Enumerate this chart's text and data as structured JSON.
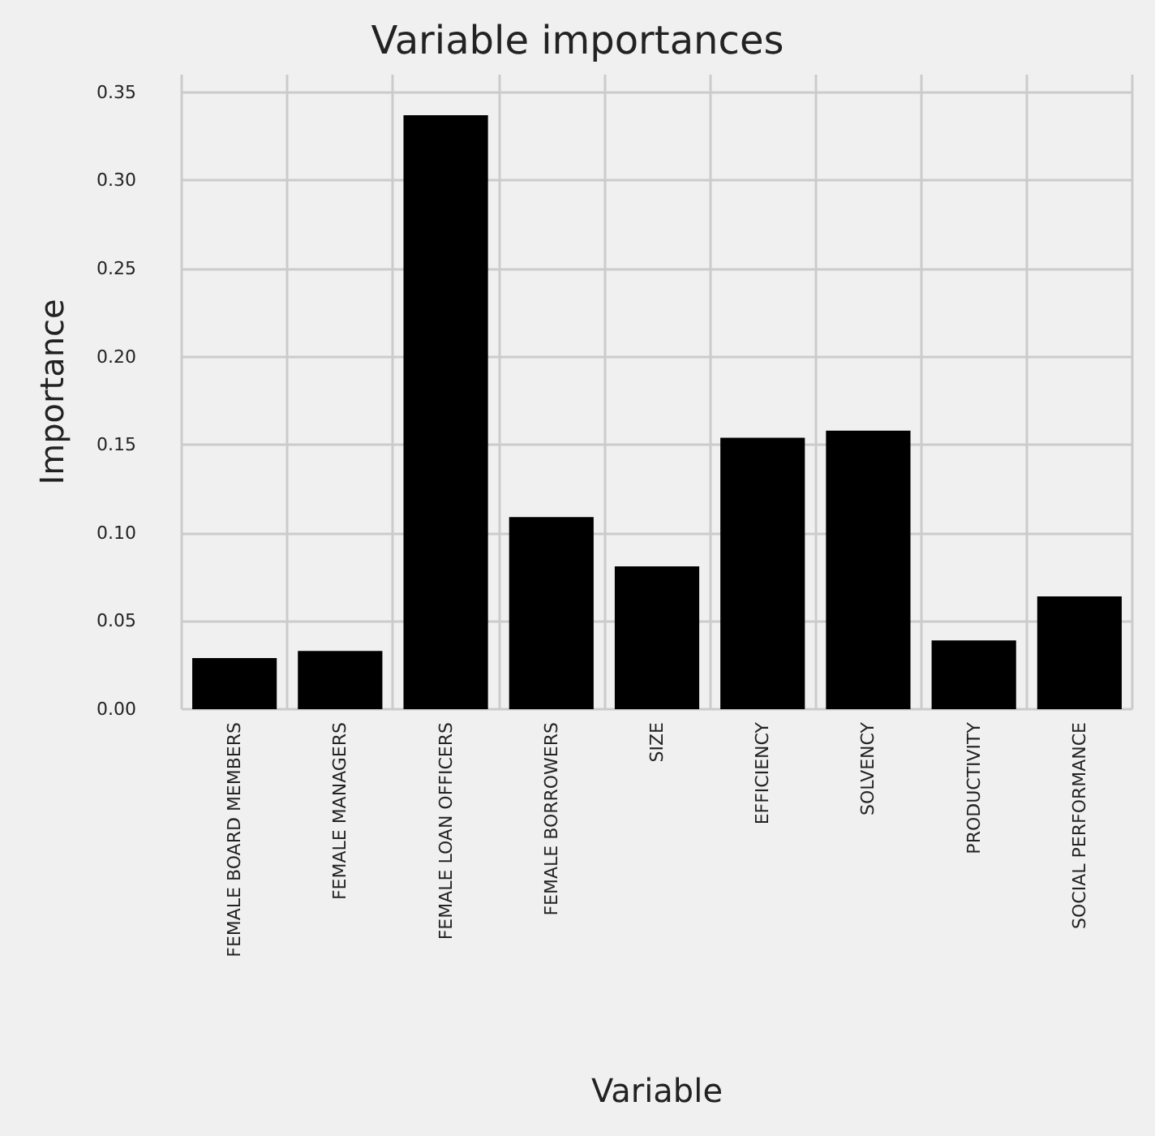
{
  "chart_data": {
    "type": "bar",
    "title": "Variable importances",
    "xlabel": "Variable",
    "ylabel": "Importance",
    "categories": [
      "FEMALE BOARD MEMBERS",
      "FEMALE MANAGERS",
      "FEMALE LOAN OFFICERS",
      "FEMALE BORROWERS",
      "SIZE",
      "EFFICIENCY",
      "SOLVENCY",
      "PRODUCTIVITY",
      "SOCIAL PERFORMANCE"
    ],
    "values": [
      0.029,
      0.033,
      0.337,
      0.109,
      0.081,
      0.154,
      0.158,
      0.039,
      0.064
    ],
    "color": "#000000",
    "ylim": [
      0,
      0.36
    ],
    "yticks": [
      {
        "value": 0,
        "label": "0.00"
      },
      {
        "value": 0.05,
        "label": "0.05"
      },
      {
        "value": 0.1,
        "label": "0.10"
      },
      {
        "value": 0.15,
        "label": "0.15"
      },
      {
        "value": 0.2,
        "label": "0.20"
      },
      {
        "value": 0.25,
        "label": "0.25"
      },
      {
        "value": 0.3,
        "label": "0.30"
      },
      {
        "value": 0.35,
        "label": "0.35"
      }
    ],
    "grid": true
  }
}
